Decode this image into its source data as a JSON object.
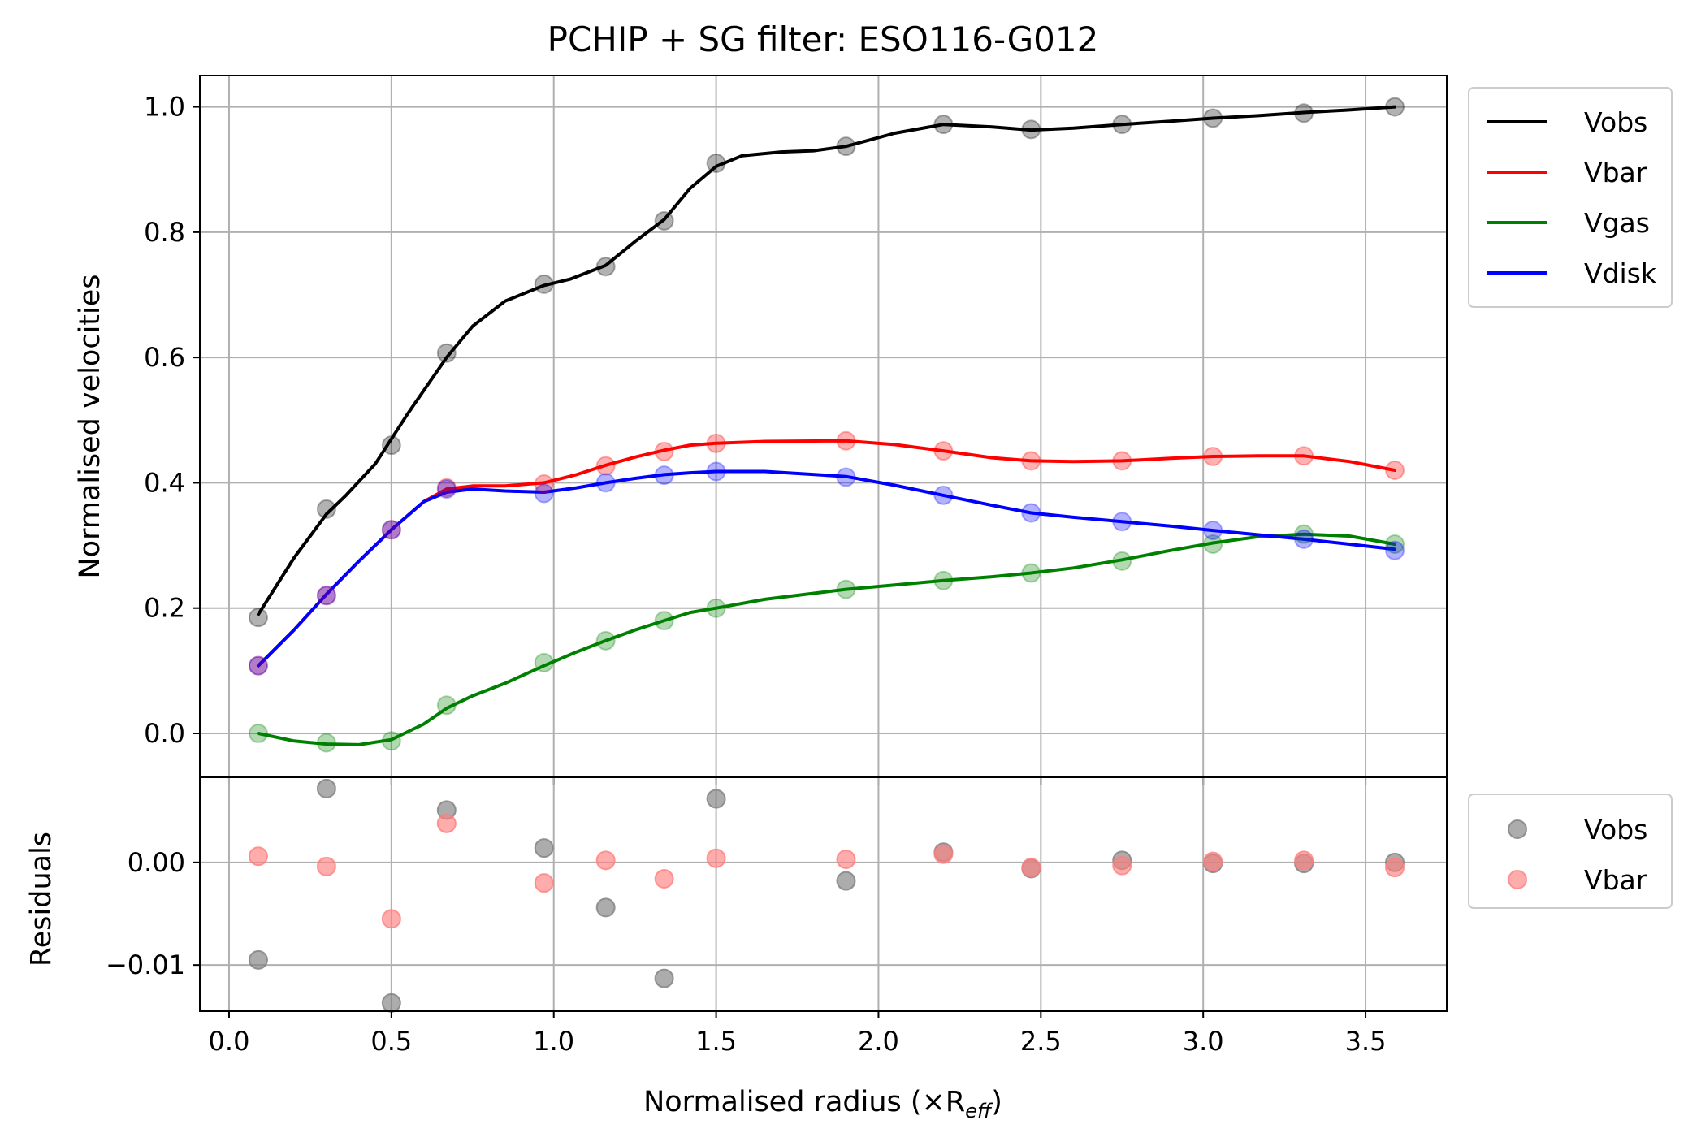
{
  "chart_data": [
    {
      "panel": "main",
      "type": "line",
      "title": "PCHIP + SG filter: ESO116-G012",
      "xlabel": "",
      "ylabel": "Normalised velocities",
      "xlim": [
        -0.09,
        3.75
      ],
      "ylim": [
        -0.07,
        1.05
      ],
      "grid": true,
      "legend_placement": "outside upper right",
      "xticks": [
        0.0,
        0.5,
        1.0,
        1.5,
        2.0,
        2.5,
        3.0,
        3.5
      ],
      "xtick_labels": [
        "",
        "",
        "",
        "",
        "",
        "",
        "",
        ""
      ],
      "yticks": [
        0.0,
        0.2,
        0.4,
        0.6,
        0.8,
        1.0
      ],
      "ytick_labels": [
        "0.0",
        "0.2",
        "0.4",
        "0.6",
        "0.8",
        "1.0"
      ],
      "x": [
        0.09,
        0.3,
        0.5,
        0.67,
        0.97,
        1.16,
        1.34,
        1.5,
        1.9,
        2.2,
        2.47,
        2.75,
        3.03,
        3.31,
        3.59
      ],
      "series": [
        {
          "name": "Vobs",
          "color": "#000000",
          "points": [
            0.185,
            0.358,
            0.46,
            0.607,
            0.717,
            0.745,
            0.818,
            0.91,
            0.937,
            0.972,
            0.964,
            0.972,
            0.982,
            0.99,
            1.0
          ],
          "curve": [
            [
              0.09,
              0.19
            ],
            [
              0.2,
              0.28
            ],
            [
              0.3,
              0.35
            ],
            [
              0.36,
              0.38
            ],
            [
              0.45,
              0.43
            ],
            [
              0.55,
              0.51
            ],
            [
              0.67,
              0.6
            ],
            [
              0.75,
              0.65
            ],
            [
              0.85,
              0.69
            ],
            [
              0.97,
              0.715
            ],
            [
              1.05,
              0.725
            ],
            [
              1.16,
              0.747
            ],
            [
              1.25,
              0.785
            ],
            [
              1.34,
              0.82
            ],
            [
              1.42,
              0.87
            ],
            [
              1.5,
              0.905
            ],
            [
              1.58,
              0.922
            ],
            [
              1.7,
              0.928
            ],
            [
              1.8,
              0.93
            ],
            [
              1.9,
              0.937
            ],
            [
              2.05,
              0.958
            ],
            [
              2.2,
              0.972
            ],
            [
              2.35,
              0.968
            ],
            [
              2.47,
              0.963
            ],
            [
              2.6,
              0.966
            ],
            [
              2.75,
              0.972
            ],
            [
              2.9,
              0.977
            ],
            [
              3.03,
              0.982
            ],
            [
              3.17,
              0.986
            ],
            [
              3.31,
              0.991
            ],
            [
              3.45,
              0.995
            ],
            [
              3.59,
              1.0
            ]
          ]
        },
        {
          "name": "Vbar",
          "color": "#ff0000",
          "points": [
            0.108,
            0.22,
            0.325,
            0.392,
            0.398,
            0.427,
            0.45,
            0.463,
            0.467,
            0.451,
            0.435,
            0.435,
            0.442,
            0.443,
            0.42
          ],
          "curve": [
            [
              0.09,
              0.108
            ],
            [
              0.2,
              0.165
            ],
            [
              0.3,
              0.222
            ],
            [
              0.4,
              0.275
            ],
            [
              0.5,
              0.325
            ],
            [
              0.6,
              0.37
            ],
            [
              0.67,
              0.39
            ],
            [
              0.75,
              0.395
            ],
            [
              0.85,
              0.395
            ],
            [
              0.97,
              0.4
            ],
            [
              1.07,
              0.413
            ],
            [
              1.16,
              0.428
            ],
            [
              1.25,
              0.441
            ],
            [
              1.34,
              0.452
            ],
            [
              1.42,
              0.46
            ],
            [
              1.5,
              0.463
            ],
            [
              1.65,
              0.466
            ],
            [
              1.9,
              0.467
            ],
            [
              2.05,
              0.461
            ],
            [
              2.2,
              0.451
            ],
            [
              2.35,
              0.44
            ],
            [
              2.47,
              0.435
            ],
            [
              2.6,
              0.434
            ],
            [
              2.75,
              0.435
            ],
            [
              2.9,
              0.439
            ],
            [
              3.03,
              0.442
            ],
            [
              3.17,
              0.443
            ],
            [
              3.31,
              0.443
            ],
            [
              3.45,
              0.434
            ],
            [
              3.59,
              0.42
            ]
          ]
        },
        {
          "name": "Vgas",
          "color": "#008000",
          "points": [
            0.0,
            -0.015,
            -0.012,
            0.045,
            0.113,
            0.148,
            0.18,
            0.2,
            0.23,
            0.244,
            0.256,
            0.275,
            0.302,
            0.318,
            0.302
          ],
          "curve": [
            [
              0.09,
              0.0
            ],
            [
              0.2,
              -0.012
            ],
            [
              0.3,
              -0.017
            ],
            [
              0.4,
              -0.018
            ],
            [
              0.5,
              -0.01
            ],
            [
              0.6,
              0.015
            ],
            [
              0.67,
              0.04
            ],
            [
              0.75,
              0.06
            ],
            [
              0.85,
              0.08
            ],
            [
              0.97,
              0.108
            ],
            [
              1.07,
              0.13
            ],
            [
              1.16,
              0.148
            ],
            [
              1.25,
              0.165
            ],
            [
              1.34,
              0.18
            ],
            [
              1.42,
              0.193
            ],
            [
              1.5,
              0.2
            ],
            [
              1.65,
              0.214
            ],
            [
              1.9,
              0.23
            ],
            [
              2.05,
              0.237
            ],
            [
              2.2,
              0.244
            ],
            [
              2.35,
              0.25
            ],
            [
              2.47,
              0.256
            ],
            [
              2.6,
              0.264
            ],
            [
              2.75,
              0.277
            ],
            [
              2.9,
              0.292
            ],
            [
              3.03,
              0.304
            ],
            [
              3.17,
              0.314
            ],
            [
              3.31,
              0.318
            ],
            [
              3.45,
              0.315
            ],
            [
              3.59,
              0.302
            ]
          ]
        },
        {
          "name": "Vdisk",
          "color": "#0000ff",
          "points": [
            0.108,
            0.22,
            0.325,
            0.39,
            0.383,
            0.4,
            0.412,
            0.418,
            0.409,
            0.38,
            0.352,
            0.338,
            0.324,
            0.31,
            0.292
          ],
          "curve": [
            [
              0.09,
              0.108
            ],
            [
              0.2,
              0.165
            ],
            [
              0.3,
              0.222
            ],
            [
              0.4,
              0.275
            ],
            [
              0.5,
              0.325
            ],
            [
              0.6,
              0.37
            ],
            [
              0.67,
              0.385
            ],
            [
              0.75,
              0.39
            ],
            [
              0.85,
              0.387
            ],
            [
              0.97,
              0.385
            ],
            [
              1.07,
              0.392
            ],
            [
              1.16,
              0.4
            ],
            [
              1.25,
              0.407
            ],
            [
              1.34,
              0.413
            ],
            [
              1.42,
              0.416
            ],
            [
              1.5,
              0.418
            ],
            [
              1.65,
              0.418
            ],
            [
              1.9,
              0.41
            ],
            [
              2.05,
              0.396
            ],
            [
              2.2,
              0.38
            ],
            [
              2.35,
              0.364
            ],
            [
              2.47,
              0.352
            ],
            [
              2.6,
              0.345
            ],
            [
              2.75,
              0.338
            ],
            [
              2.9,
              0.331
            ],
            [
              3.03,
              0.324
            ],
            [
              3.17,
              0.317
            ],
            [
              3.31,
              0.31
            ],
            [
              3.45,
              0.302
            ],
            [
              3.59,
              0.294
            ]
          ]
        }
      ]
    },
    {
      "panel": "residuals",
      "type": "scatter",
      "xlabel": "Normalised radius (×R",
      "xlabel_sub": "eff",
      "xlabel_close": ")",
      "ylabel": "Residuals",
      "xlim": [
        -0.09,
        3.75
      ],
      "ylim": [
        -0.0145,
        0.0083
      ],
      "grid": true,
      "legend_placement": "outside upper right",
      "xticks": [
        0.0,
        0.5,
        1.0,
        1.5,
        2.0,
        2.5,
        3.0,
        3.5
      ],
      "xtick_labels": [
        "0.0",
        "0.5",
        "1.0",
        "1.5",
        "2.0",
        "2.5",
        "3.0",
        "3.5"
      ],
      "yticks": [
        0.0,
        -0.01
      ],
      "ytick_labels": [
        "0.00",
        "−0.01"
      ],
      "x": [
        0.09,
        0.3,
        0.5,
        0.67,
        0.97,
        1.16,
        1.34,
        1.5,
        1.9,
        2.2,
        2.47,
        2.75,
        3.03,
        3.31,
        3.59
      ],
      "series": [
        {
          "name": "Vobs",
          "color": "#808080",
          "values": [
            -0.0095,
            0.0072,
            -0.0137,
            0.0051,
            0.0014,
            -0.0044,
            -0.0113,
            0.0062,
            -0.0018,
            0.001,
            -0.0006,
            0.0002,
            -0.0001,
            -0.0001,
            0.0
          ]
        },
        {
          "name": "Vbar",
          "color": "#ff8080",
          "values": [
            0.0006,
            -0.0004,
            -0.0055,
            0.0038,
            -0.002,
            0.0002,
            -0.0016,
            0.0004,
            0.0003,
            0.0008,
            -0.0005,
            -0.0003,
            0.0001,
            0.0002,
            -0.0005
          ]
        }
      ]
    }
  ]
}
